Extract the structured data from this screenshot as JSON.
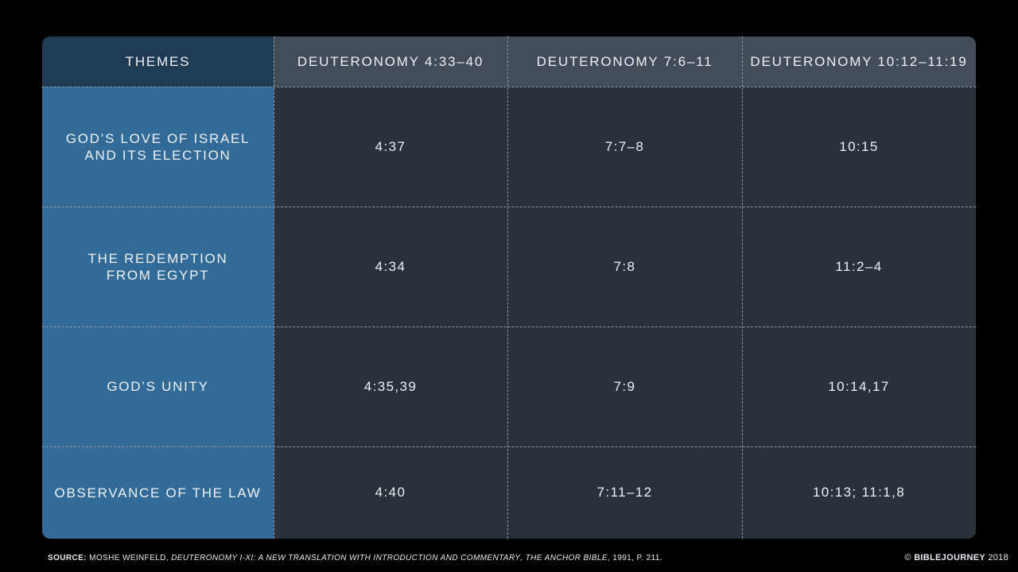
{
  "table": {
    "header": {
      "themes_label": "THEMES",
      "columns": [
        "DEUTERONOMY 4:33–40",
        "DEUTERONOMY 7:6–11",
        "DEUTERONOMY 10:12–11:19"
      ]
    },
    "rows": [
      {
        "theme_line1": "GOD’S LOVE OF ISRAEL",
        "theme_line2": "AND ITS ELECTION",
        "values": [
          "4:37",
          "7:7–8",
          "10:15"
        ]
      },
      {
        "theme_line1": "THE REDEMPTION",
        "theme_line2": "FROM EGYPT",
        "values": [
          "4:34",
          "7:8",
          "11:2–4"
        ]
      },
      {
        "theme_line1": "GOD’S UNITY",
        "theme_line2": "",
        "values": [
          "4:35,39",
          "7:9",
          "10:14,17"
        ]
      },
      {
        "theme_line1": "OBSERVANCE OF THE LAW",
        "theme_line2": "",
        "values": [
          "4:40",
          "7:11–12",
          "10:13; 11:1,8"
        ]
      }
    ]
  },
  "footer": {
    "source_label": "SOURCE:",
    "source_author": "MOSHE WEINFELD,",
    "source_title": "DEUTERONOMY I-XI: A NEW TRANSLATION WITH INTRODUCTION AND COMMENTARY",
    "source_sep": ",",
    "source_series": "THE ANCHOR BIBLE",
    "source_tail": ", 1991, P. 211.",
    "copyright_symbol": "©",
    "brand": "BIBLEJOURNEY",
    "year": "2018"
  },
  "colors": {
    "background": "#000000",
    "themes_column": "#336b98",
    "themes_header": "#203c54",
    "header_row": "#434c58",
    "body": "#2b313b",
    "text": "#eef1f5"
  }
}
